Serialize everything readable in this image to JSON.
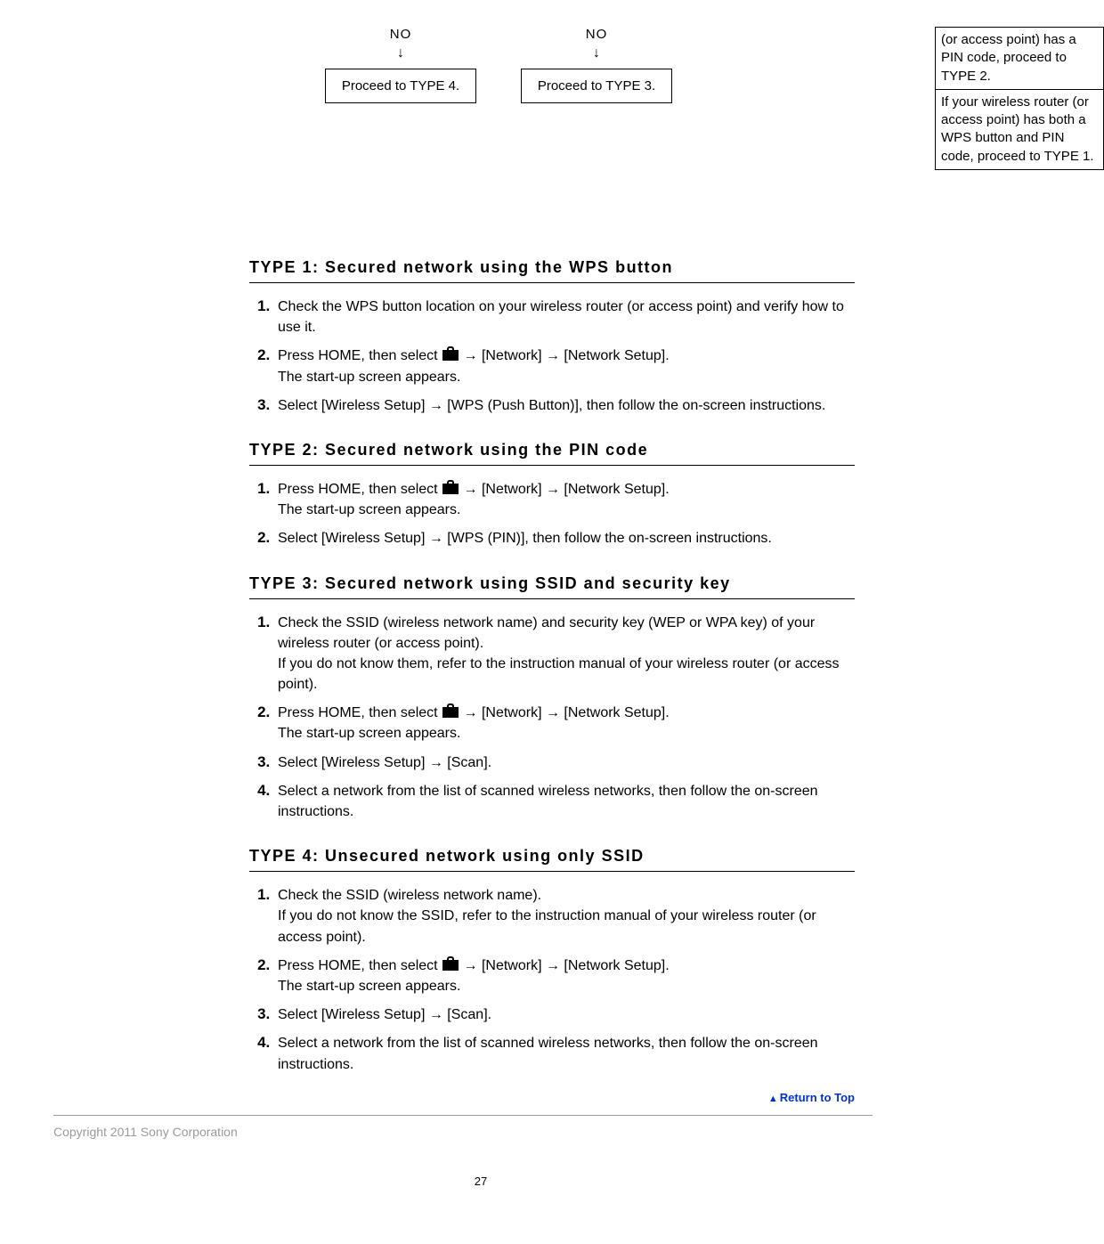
{
  "flow": {
    "col1": {
      "no": "NO",
      "arrow": "↓",
      "box": "Proceed to TYPE 4."
    },
    "col2": {
      "no": "NO",
      "arrow": "↓",
      "box": "Proceed to TYPE 3."
    },
    "sideBox1": "(or access point) has a PIN code, proceed to TYPE 2.",
    "sideBox2": "If your wireless router (or access point) has both a WPS button and PIN code, proceed to TYPE 1."
  },
  "sections": {
    "type1": {
      "title": "TYPE 1: Secured network using the WPS button",
      "steps": [
        {
          "text": "Check the WPS button location on your wireless router (or access point) and verify how to use it."
        },
        {
          "prefix": "Press HOME, then select ",
          "hasIcon": true,
          "suffix": " → [Network] → [Network Setup].",
          "line2": "The start-up screen appears."
        },
        {
          "text": "Select [Wireless Setup] → [WPS (Push Button)], then follow the on-screen instructions."
        }
      ]
    },
    "type2": {
      "title": "TYPE 2: Secured network using the PIN code",
      "steps": [
        {
          "prefix": "Press HOME, then select ",
          "hasIcon": true,
          "suffix": " → [Network] → [Network Setup].",
          "line2": "The start-up screen appears."
        },
        {
          "text": "Select [Wireless Setup] → [WPS (PIN)], then follow the on-screen instructions."
        }
      ]
    },
    "type3": {
      "title": "TYPE 3: Secured network using SSID and security key",
      "steps": [
        {
          "text": "Check the SSID (wireless network name) and security key (WEP or WPA key) of your wireless router (or access point).",
          "line2": "If you do not know them, refer to the instruction manual of your wireless router (or access point)."
        },
        {
          "prefix": "Press HOME, then select ",
          "hasIcon": true,
          "suffix": " → [Network] → [Network Setup].",
          "line2": "The start-up screen appears."
        },
        {
          "text": "Select [Wireless Setup] → [Scan]."
        },
        {
          "text": "Select a network from the list of scanned wireless networks, then follow the on-screen instructions."
        }
      ]
    },
    "type4": {
      "title": "TYPE 4: Unsecured network using only SSID",
      "steps": [
        {
          "text": "Check the SSID (wireless network name).",
          "line2": "If you do not know the SSID, refer to the instruction manual of your wireless router (or access point)."
        },
        {
          "prefix": "Press HOME, then select ",
          "hasIcon": true,
          "suffix": " → [Network] → [Network Setup].",
          "line2": "The start-up screen appears."
        },
        {
          "text": "Select [Wireless Setup] → [Scan]."
        },
        {
          "text": "Select a network from the list of scanned wireless networks, then follow the on-screen instructions."
        }
      ]
    }
  },
  "returnTop": "Return to Top",
  "copyright": "Copyright 2011 Sony Corporation",
  "pageNum": "27"
}
